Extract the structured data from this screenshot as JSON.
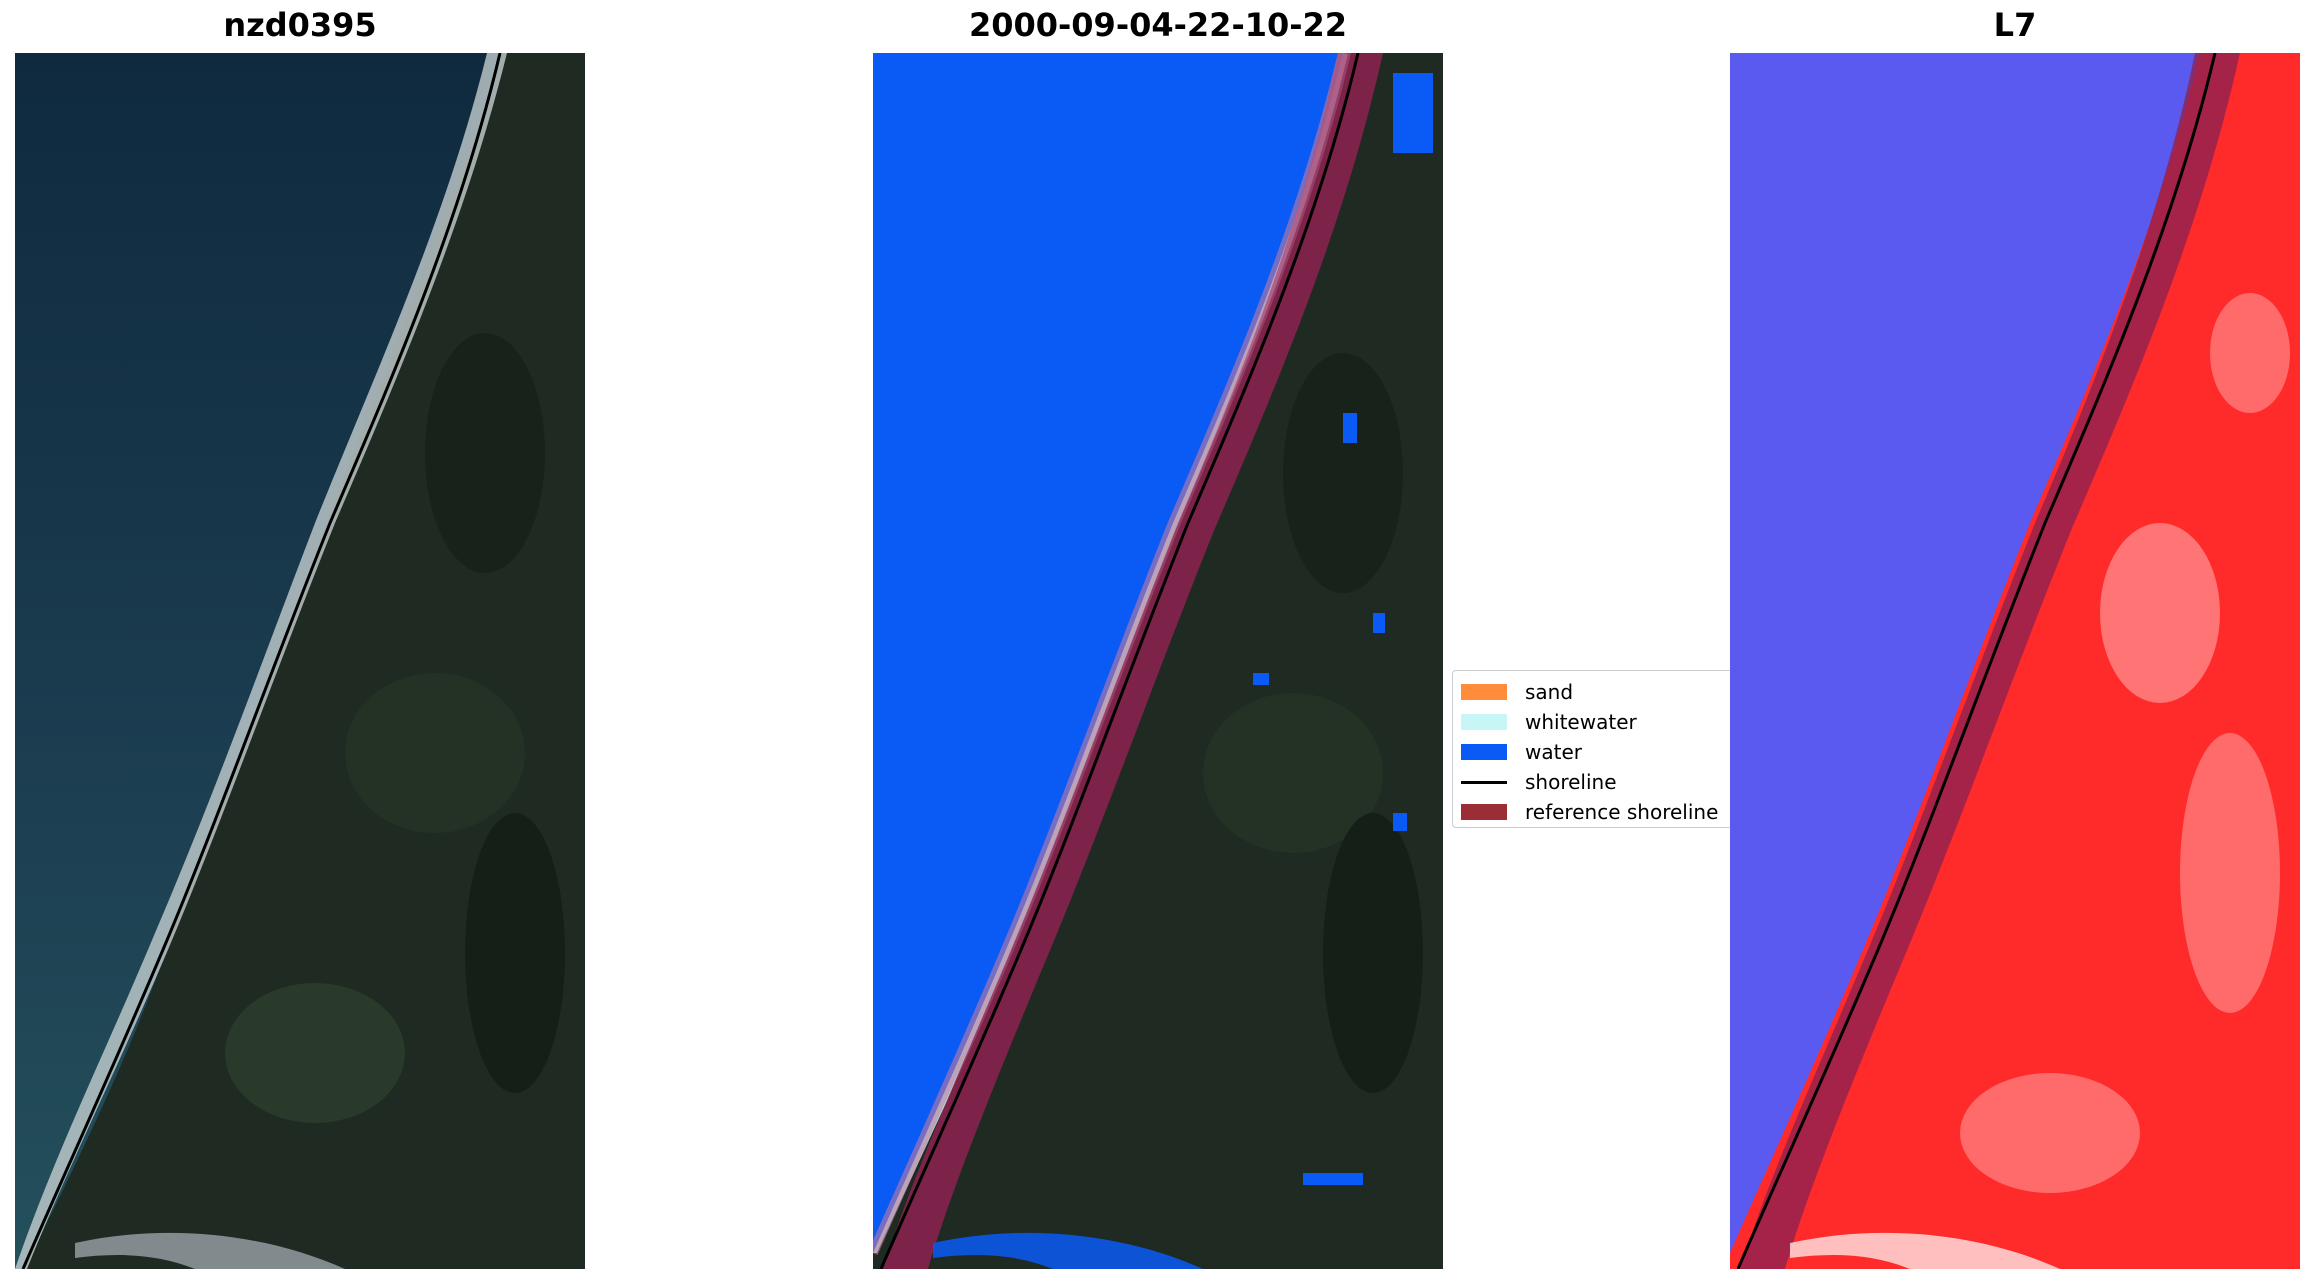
{
  "panels": [
    {
      "title": "nzd0395"
    },
    {
      "title": "2000-09-04-22-10-22"
    },
    {
      "title": "L7"
    }
  ],
  "legend": {
    "items": [
      {
        "label": "sand",
        "color": "#ff8c3a",
        "kind": "patch"
      },
      {
        "label": "whitewater",
        "color": "#c8f5f5",
        "kind": "patch"
      },
      {
        "label": "water",
        "color": "#0a5af5",
        "kind": "patch"
      },
      {
        "label": "shoreline",
        "color": "#000000",
        "kind": "line"
      },
      {
        "label": "reference shoreline",
        "color": "#9b2d35",
        "kind": "patch"
      }
    ]
  },
  "colors": {
    "ocean_rgb": "#173347",
    "land_rgb": "#1f2b24",
    "water_class": "#0a5af5",
    "reference_band": "#8e2250",
    "index_water": "#5a5af0",
    "index_land": "#ff2a2a"
  }
}
